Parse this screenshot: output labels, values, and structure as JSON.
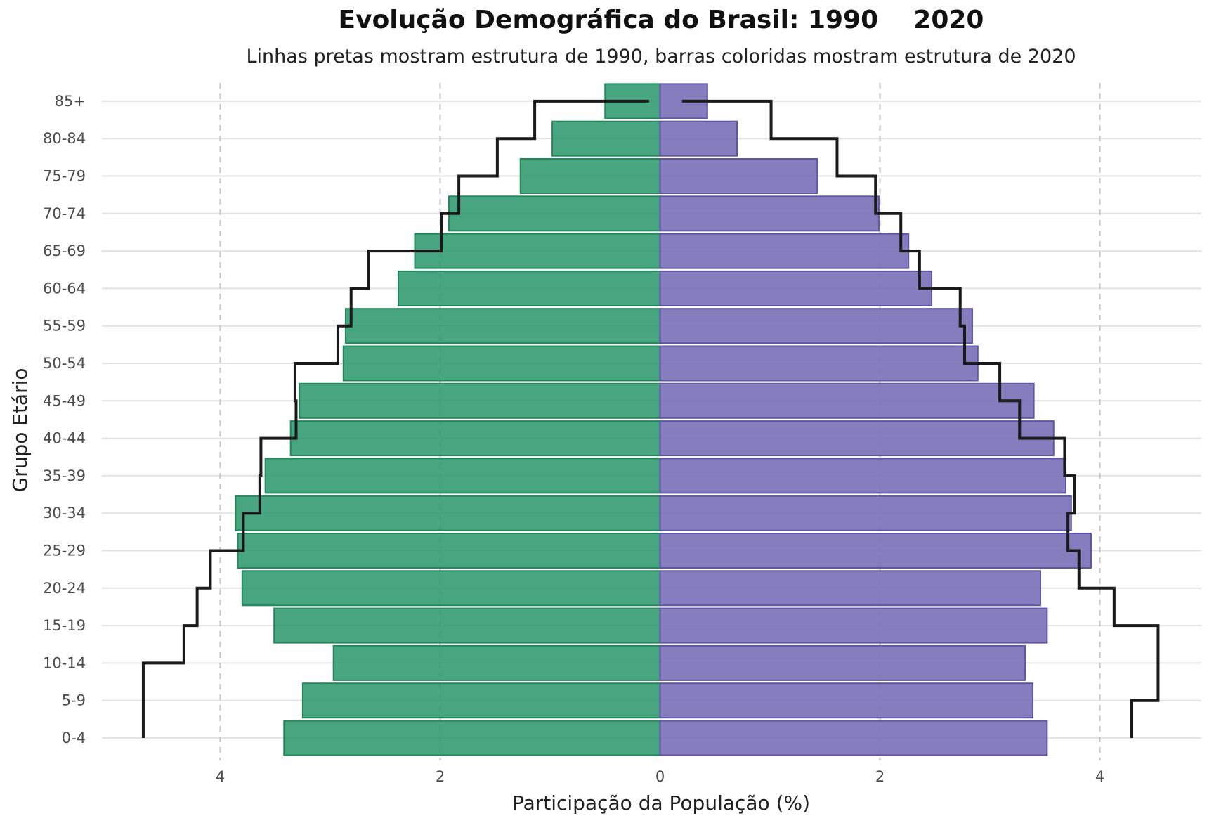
{
  "chart_data": {
    "type": "bar",
    "title": "Evolução Demográfica do Brasil: 1990    2020",
    "subtitle": "Linhas pretas mostram estrutura de 1990, barras coloridas mostram estrutura de 2020",
    "xlabel": "Participação da População (%)",
    "ylabel": "Grupo Etário",
    "xlim": [
      -5.0,
      5.0
    ],
    "x_ticks": [
      -4,
      -2,
      0,
      2,
      4
    ],
    "x_tick_labels": [
      "4",
      "2",
      "0",
      "2",
      "4"
    ],
    "grid": true,
    "legend": "none",
    "categories": [
      "0-4",
      "5-9",
      "10-14",
      "15-19",
      "20-24",
      "25-29",
      "30-34",
      "35-39",
      "40-44",
      "45-49",
      "50-54",
      "55-59",
      "60-64",
      "65-69",
      "70-74",
      "75-79",
      "80-84",
      "85+"
    ],
    "series": [
      {
        "values": [
          -3.42,
          -3.25,
          -2.97,
          -3.51,
          -3.8,
          -3.84,
          -3.86,
          -3.59,
          -3.36,
          -3.28,
          -2.88,
          -2.86,
          -2.38,
          -2.23,
          -1.92,
          -1.27,
          -0.98,
          -0.5
        ],
        "color": "#2e9a6e"
      },
      {
        "values": [
          3.52,
          3.39,
          3.32,
          3.52,
          3.46,
          3.92,
          3.74,
          3.69,
          3.58,
          3.4,
          2.89,
          2.84,
          2.47,
          2.26,
          1.99,
          1.43,
          0.7,
          0.43
        ],
        "color": "#7b72b8"
      },
      {
        "values": [
          -4.7,
          -4.7,
          -4.33,
          -4.21,
          -4.09,
          -3.79,
          -3.64,
          -3.63,
          -3.31,
          -3.32,
          -2.93,
          -2.81,
          -2.65,
          -1.99,
          -1.83,
          -1.48,
          -1.14,
          -0.61
        ],
        "color": "#1a1a1a"
      },
      {
        "values": [
          4.29,
          4.53,
          4.53,
          4.13,
          3.81,
          3.71,
          3.77,
          3.68,
          3.27,
          3.09,
          2.77,
          2.73,
          2.36,
          2.19,
          1.96,
          1.61,
          1.01,
          0.7
        ],
        "color": "#1a1a1a"
      }
    ],
    "line_85_inner_ends": [
      -0.1,
      0.2
    ]
  }
}
